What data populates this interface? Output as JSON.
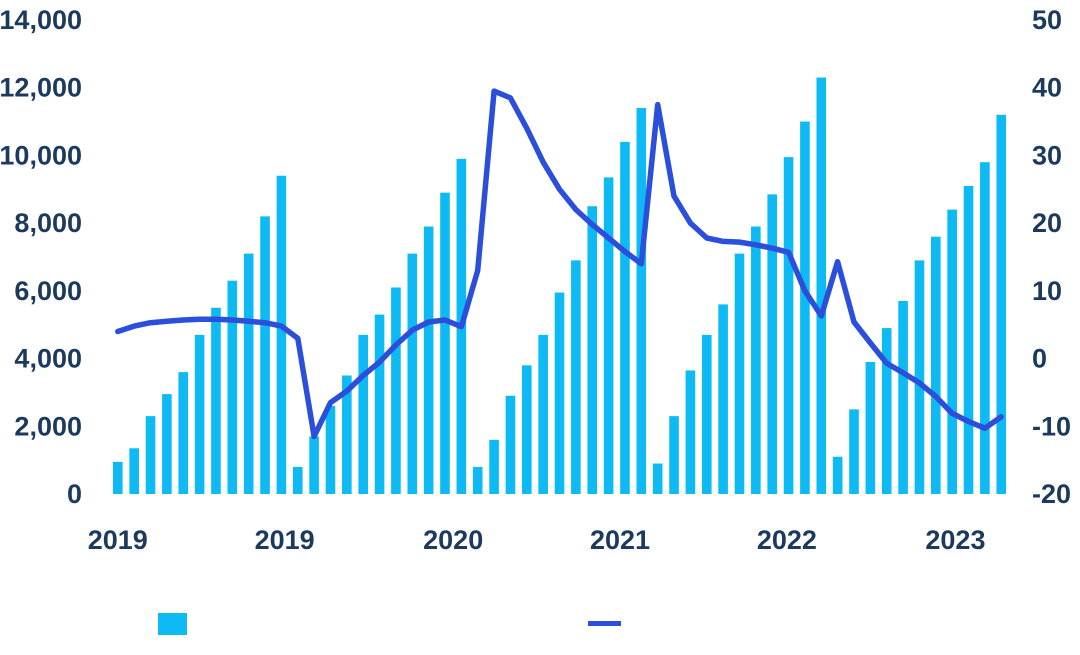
{
  "chart_data": {
    "type": "bar+line combo",
    "title": "",
    "x_axis": {
      "tick_labels": [
        "2019",
        "2019",
        "2020",
        "2021",
        "2022",
        "2023"
      ],
      "tick_bar_index": [
        0,
        10.2,
        20.5,
        30.7,
        40.9,
        51.2
      ]
    },
    "left_axis": {
      "min": 0,
      "max": 14000,
      "tick_labels": [
        "14,000",
        "12,000",
        "10,000",
        "8,000",
        "6,000",
        "4,000",
        "2,000",
        "0"
      ],
      "tick_values": [
        14000,
        12000,
        10000,
        8000,
        6000,
        4000,
        2000,
        0
      ]
    },
    "right_axis": {
      "min": -20,
      "max": 50,
      "tick_labels": [
        "50",
        "40",
        "30",
        "20",
        "10",
        "0",
        "-10",
        "-20"
      ],
      "tick_values": [
        50,
        40,
        30,
        20,
        10,
        0,
        -10,
        -20
      ]
    },
    "grid": "off",
    "legend_position": "bottom",
    "series": [
      {
        "name": "",
        "type": "bar",
        "axis": "left",
        "values": [
          950,
          1350,
          2300,
          2950,
          3600,
          4700,
          5500,
          6300,
          7100,
          8200,
          9400,
          800,
          1700,
          2600,
          3500,
          4700,
          5300,
          6100,
          7100,
          7900,
          8900,
          9900,
          800,
          1600,
          2900,
          3800,
          4700,
          5950,
          6900,
          8500,
          9350,
          10400,
          11400,
          900,
          2300,
          3650,
          4700,
          5600,
          7100,
          7900,
          8850,
          9950,
          11000,
          12300,
          1100,
          2500,
          3900,
          4900,
          5700,
          6900,
          7600,
          8400,
          9100,
          9800,
          11200
        ]
      },
      {
        "name": "",
        "type": "line",
        "axis": "right",
        "values": [
          4.0,
          4.8,
          5.3,
          5.5,
          5.7,
          5.8,
          5.8,
          5.7,
          5.5,
          5.3,
          4.8,
          3.0,
          -11.5,
          -6.5,
          -4.8,
          -2.5,
          -0.5,
          2.0,
          4.2,
          5.4,
          5.7,
          4.7,
          13.0,
          39.5,
          38.5,
          34.0,
          29.0,
          25.0,
          22.0,
          19.8,
          17.8,
          15.8,
          14.0,
          37.5,
          24.0,
          20.0,
          17.8,
          17.3,
          17.2,
          16.8,
          16.3,
          15.7,
          10.0,
          6.3,
          14.3,
          5.4,
          2.3,
          -0.7,
          -2.1,
          -3.6,
          -5.6,
          -8.1,
          -9.3,
          -10.3,
          -8.6
        ]
      }
    ],
    "colors": {
      "bar": "#0dbaf3",
      "line": "#2b4fdb",
      "axis_text": "#1c3a5e",
      "background": "#ffffff"
    }
  },
  "legend": {
    "bar_label": "",
    "line_label": ""
  }
}
